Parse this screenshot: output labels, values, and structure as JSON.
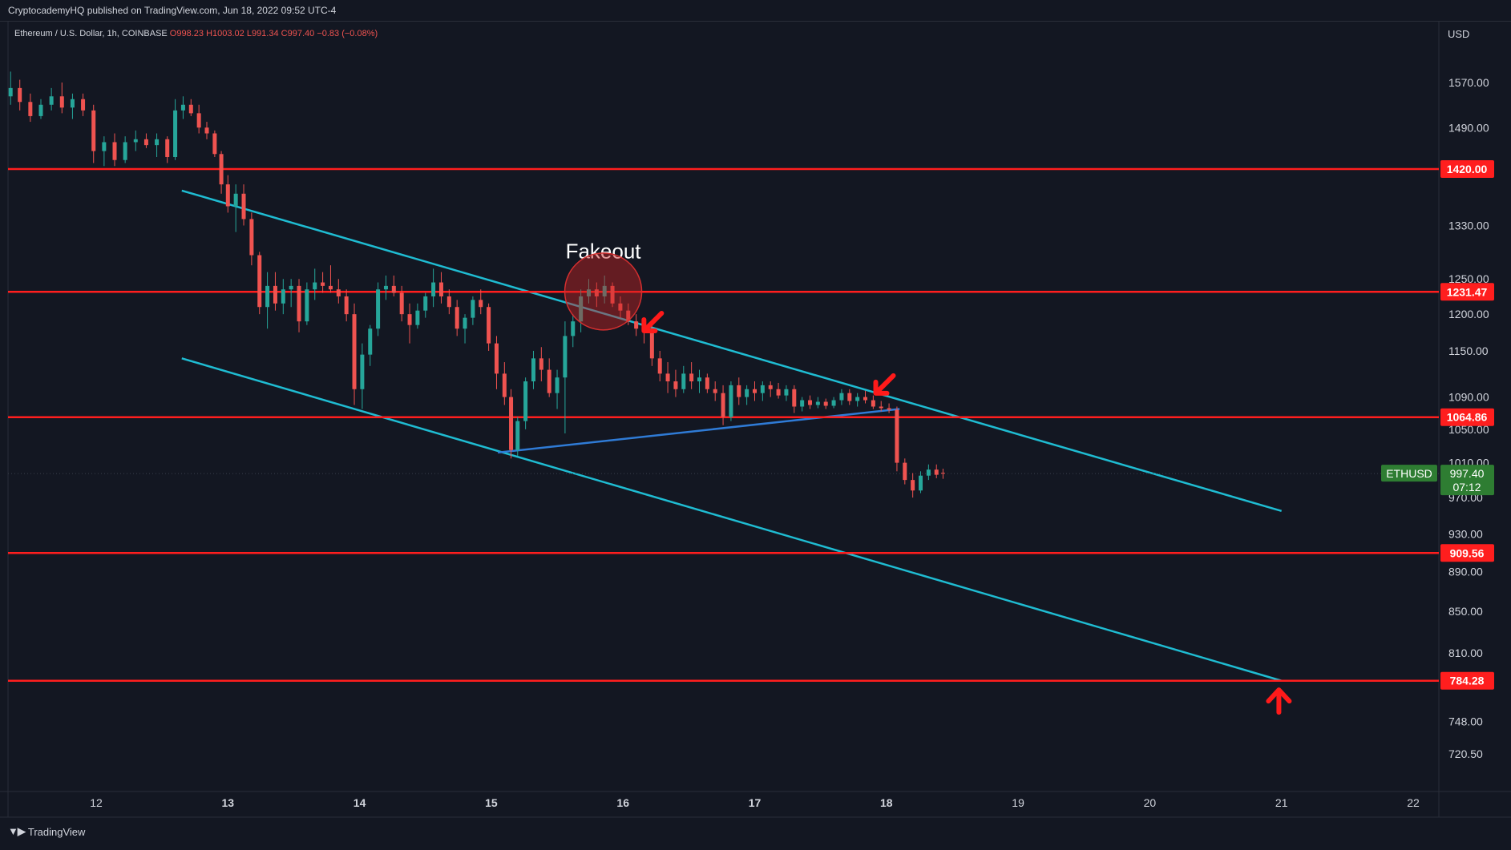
{
  "publisher_line": "CryptocademyHQ published on TradingView.com, Jun 18, 2022 09:52 UTC-4",
  "footer": {
    "brand": "TradingView"
  },
  "colors": {
    "background": "#131722",
    "up": "#26a69a",
    "down": "#ef5350",
    "level": "#ff1e1e",
    "channel": "#1fbcd2",
    "trendline": "#2f7bd6",
    "arrow": "#ff1a1a",
    "price_tag": "#2e7d32"
  },
  "chart_data": {
    "type": "candlestick",
    "symbol_header": {
      "name": "Ethereum / U.S. Dollar, 1h, COINBASE",
      "open": "O998.23",
      "high": "H1003.02",
      "low": "L991.34",
      "close": "C997.40",
      "change": "−0.83 (−0.08%)"
    },
    "currency": "USD",
    "y_axis": {
      "scale": "log",
      "range": [
        690,
        1650
      ],
      "ticks": [
        "1570.00",
        "1490.00",
        "1330.00",
        "1250.00",
        "1200.00",
        "1150.00",
        "1090.00",
        "1050.00",
        "1010.00",
        "970.00",
        "930.00",
        "890.00",
        "850.00",
        "810.00",
        "748.00",
        "720.50"
      ],
      "tick_values": [
        1570,
        1490,
        1330,
        1250,
        1200,
        1150,
        1090,
        1050,
        1010,
        970,
        930,
        890,
        850,
        810,
        748,
        720.5
      ]
    },
    "x_axis": {
      "labels": [
        "12",
        "13",
        "14",
        "15",
        "16",
        "17",
        "18",
        "19",
        "20",
        "21",
        "22"
      ],
      "label_days": [
        12,
        13,
        14,
        15,
        16,
        17,
        18,
        19,
        20,
        21,
        22
      ],
      "bold": [
        false,
        true,
        true,
        true,
        true,
        true,
        true,
        false,
        false,
        false,
        false
      ],
      "range_days": [
        11.34,
        22.25
      ]
    },
    "horizontal_levels": [
      {
        "value": 1420.0,
        "label": "1420.00"
      },
      {
        "value": 1231.47,
        "label": "1231.47"
      },
      {
        "value": 1064.86,
        "label": "1064.86"
      },
      {
        "value": 909.56,
        "label": "909.56"
      },
      {
        "value": 784.28,
        "label": "784.28"
      }
    ],
    "current_price": {
      "symbol": "ETHUSD",
      "price": "997.40",
      "countdown": "07:12",
      "value": 997.4
    },
    "channel_lines": [
      {
        "name": "upper",
        "x1": 12.65,
        "y1": 1385,
        "x2": 21.0,
        "y2": 955
      },
      {
        "name": "lower",
        "x1": 12.65,
        "y1": 1140,
        "x2": 21.0,
        "y2": 784.28
      }
    ],
    "trendline": {
      "x1": 15.05,
      "y1": 1022,
      "x2": 18.1,
      "y2": 1075
    },
    "annotations": [
      {
        "type": "text",
        "text": "Fakeout",
        "x": 15.85,
        "y": 1280
      },
      {
        "type": "circle",
        "x": 15.85,
        "y": 1232
      },
      {
        "type": "arrow",
        "direction": "down-left",
        "x": 16.22,
        "y": 1188
      },
      {
        "type": "arrow",
        "direction": "down-left",
        "x": 17.98,
        "y": 1105
      },
      {
        "type": "arrow",
        "direction": "up",
        "x": 20.98,
        "y": 766
      }
    ],
    "candles": [
      {
        "t": 11.35,
        "o": 1545,
        "h": 1590,
        "l": 1530,
        "c": 1560
      },
      {
        "t": 11.42,
        "o": 1560,
        "h": 1575,
        "l": 1520,
        "c": 1535
      },
      {
        "t": 11.5,
        "o": 1535,
        "h": 1550,
        "l": 1500,
        "c": 1510
      },
      {
        "t": 11.58,
        "o": 1510,
        "h": 1540,
        "l": 1505,
        "c": 1530
      },
      {
        "t": 11.66,
        "o": 1530,
        "h": 1560,
        "l": 1520,
        "c": 1545
      },
      {
        "t": 11.74,
        "o": 1545,
        "h": 1570,
        "l": 1515,
        "c": 1525
      },
      {
        "t": 11.82,
        "o": 1525,
        "h": 1550,
        "l": 1505,
        "c": 1540
      },
      {
        "t": 11.9,
        "o": 1540,
        "h": 1550,
        "l": 1510,
        "c": 1520
      },
      {
        "t": 11.98,
        "o": 1520,
        "h": 1530,
        "l": 1430,
        "c": 1450
      },
      {
        "t": 12.06,
        "o": 1450,
        "h": 1475,
        "l": 1425,
        "c": 1465
      },
      {
        "t": 12.14,
        "o": 1465,
        "h": 1480,
        "l": 1425,
        "c": 1435
      },
      {
        "t": 12.22,
        "o": 1435,
        "h": 1475,
        "l": 1430,
        "c": 1465
      },
      {
        "t": 12.3,
        "o": 1465,
        "h": 1485,
        "l": 1450,
        "c": 1470
      },
      {
        "t": 12.38,
        "o": 1470,
        "h": 1480,
        "l": 1455,
        "c": 1460
      },
      {
        "t": 12.46,
        "o": 1460,
        "h": 1480,
        "l": 1440,
        "c": 1470
      },
      {
        "t": 12.54,
        "o": 1470,
        "h": 1475,
        "l": 1430,
        "c": 1440
      },
      {
        "t": 12.6,
        "o": 1440,
        "h": 1540,
        "l": 1435,
        "c": 1520
      },
      {
        "t": 12.66,
        "o": 1520,
        "h": 1545,
        "l": 1505,
        "c": 1530
      },
      {
        "t": 12.72,
        "o": 1530,
        "h": 1540,
        "l": 1510,
        "c": 1515
      },
      {
        "t": 12.78,
        "o": 1515,
        "h": 1530,
        "l": 1480,
        "c": 1490
      },
      {
        "t": 12.84,
        "o": 1490,
        "h": 1500,
        "l": 1470,
        "c": 1480
      },
      {
        "t": 12.9,
        "o": 1480,
        "h": 1485,
        "l": 1440,
        "c": 1445
      },
      {
        "t": 12.95,
        "o": 1445,
        "h": 1450,
        "l": 1380,
        "c": 1395
      },
      {
        "t": 13.0,
        "o": 1395,
        "h": 1410,
        "l": 1350,
        "c": 1360
      },
      {
        "t": 13.06,
        "o": 1360,
        "h": 1395,
        "l": 1320,
        "c": 1380
      },
      {
        "t": 13.12,
        "o": 1380,
        "h": 1395,
        "l": 1330,
        "c": 1340
      },
      {
        "t": 13.18,
        "o": 1340,
        "h": 1350,
        "l": 1270,
        "c": 1285
      },
      {
        "t": 13.24,
        "o": 1285,
        "h": 1290,
        "l": 1200,
        "c": 1210
      },
      {
        "t": 13.3,
        "o": 1210,
        "h": 1260,
        "l": 1180,
        "c": 1240
      },
      {
        "t": 13.36,
        "o": 1240,
        "h": 1260,
        "l": 1205,
        "c": 1215
      },
      {
        "t": 13.42,
        "o": 1215,
        "h": 1250,
        "l": 1200,
        "c": 1235
      },
      {
        "t": 13.48,
        "o": 1235,
        "h": 1250,
        "l": 1210,
        "c": 1240
      },
      {
        "t": 13.54,
        "o": 1240,
        "h": 1250,
        "l": 1175,
        "c": 1190
      },
      {
        "t": 13.6,
        "o": 1190,
        "h": 1245,
        "l": 1185,
        "c": 1235
      },
      {
        "t": 13.66,
        "o": 1235,
        "h": 1265,
        "l": 1220,
        "c": 1245
      },
      {
        "t": 13.72,
        "o": 1245,
        "h": 1260,
        "l": 1230,
        "c": 1240
      },
      {
        "t": 13.78,
        "o": 1240,
        "h": 1270,
        "l": 1230,
        "c": 1235
      },
      {
        "t": 13.84,
        "o": 1235,
        "h": 1250,
        "l": 1215,
        "c": 1225
      },
      {
        "t": 13.9,
        "o": 1225,
        "h": 1235,
        "l": 1190,
        "c": 1200
      },
      {
        "t": 13.96,
        "o": 1200,
        "h": 1215,
        "l": 1080,
        "c": 1100
      },
      {
        "t": 14.02,
        "o": 1100,
        "h": 1160,
        "l": 1075,
        "c": 1145
      },
      {
        "t": 14.08,
        "o": 1145,
        "h": 1185,
        "l": 1130,
        "c": 1180
      },
      {
        "t": 14.14,
        "o": 1180,
        "h": 1245,
        "l": 1170,
        "c": 1235
      },
      {
        "t": 14.2,
        "o": 1235,
        "h": 1255,
        "l": 1220,
        "c": 1240
      },
      {
        "t": 14.26,
        "o": 1240,
        "h": 1255,
        "l": 1225,
        "c": 1230
      },
      {
        "t": 14.32,
        "o": 1230,
        "h": 1240,
        "l": 1190,
        "c": 1200
      },
      {
        "t": 14.38,
        "o": 1200,
        "h": 1215,
        "l": 1160,
        "c": 1185
      },
      {
        "t": 14.44,
        "o": 1185,
        "h": 1215,
        "l": 1180,
        "c": 1205
      },
      {
        "t": 14.5,
        "o": 1205,
        "h": 1230,
        "l": 1195,
        "c": 1225
      },
      {
        "t": 14.56,
        "o": 1225,
        "h": 1265,
        "l": 1210,
        "c": 1245
      },
      {
        "t": 14.62,
        "o": 1245,
        "h": 1260,
        "l": 1215,
        "c": 1225
      },
      {
        "t": 14.68,
        "o": 1225,
        "h": 1235,
        "l": 1200,
        "c": 1210
      },
      {
        "t": 14.74,
        "o": 1210,
        "h": 1220,
        "l": 1170,
        "c": 1180
      },
      {
        "t": 14.8,
        "o": 1180,
        "h": 1200,
        "l": 1160,
        "c": 1195
      },
      {
        "t": 14.86,
        "o": 1195,
        "h": 1225,
        "l": 1185,
        "c": 1220
      },
      {
        "t": 14.92,
        "o": 1220,
        "h": 1235,
        "l": 1200,
        "c": 1210
      },
      {
        "t": 14.98,
        "o": 1210,
        "h": 1215,
        "l": 1150,
        "c": 1160
      },
      {
        "t": 15.04,
        "o": 1160,
        "h": 1170,
        "l": 1100,
        "c": 1120
      },
      {
        "t": 15.1,
        "o": 1120,
        "h": 1135,
        "l": 1080,
        "c": 1090
      },
      {
        "t": 15.15,
        "o": 1090,
        "h": 1100,
        "l": 1015,
        "c": 1025
      },
      {
        "t": 15.2,
        "o": 1025,
        "h": 1065,
        "l": 1018,
        "c": 1060
      },
      {
        "t": 15.26,
        "o": 1060,
        "h": 1115,
        "l": 1050,
        "c": 1110
      },
      {
        "t": 15.32,
        "o": 1110,
        "h": 1150,
        "l": 1100,
        "c": 1140
      },
      {
        "t": 15.38,
        "o": 1140,
        "h": 1155,
        "l": 1110,
        "c": 1125
      },
      {
        "t": 15.44,
        "o": 1125,
        "h": 1140,
        "l": 1090,
        "c": 1095
      },
      {
        "t": 15.5,
        "o": 1095,
        "h": 1125,
        "l": 1075,
        "c": 1115
      },
      {
        "t": 15.56,
        "o": 1115,
        "h": 1190,
        "l": 1045,
        "c": 1170
      },
      {
        "t": 15.62,
        "o": 1170,
        "h": 1200,
        "l": 1155,
        "c": 1190
      },
      {
        "t": 15.68,
        "o": 1190,
        "h": 1235,
        "l": 1175,
        "c": 1225
      },
      {
        "t": 15.74,
        "o": 1225,
        "h": 1250,
        "l": 1215,
        "c": 1235
      },
      {
        "t": 15.8,
        "o": 1235,
        "h": 1245,
        "l": 1210,
        "c": 1225
      },
      {
        "t": 15.86,
        "o": 1225,
        "h": 1255,
        "l": 1215,
        "c": 1240
      },
      {
        "t": 15.92,
        "o": 1240,
        "h": 1245,
        "l": 1210,
        "c": 1215
      },
      {
        "t": 15.98,
        "o": 1215,
        "h": 1225,
        "l": 1195,
        "c": 1205
      },
      {
        "t": 16.04,
        "o": 1205,
        "h": 1215,
        "l": 1185,
        "c": 1190
      },
      {
        "t": 16.1,
        "o": 1190,
        "h": 1200,
        "l": 1170,
        "c": 1180
      },
      {
        "t": 16.16,
        "o": 1180,
        "h": 1190,
        "l": 1160,
        "c": 1175
      },
      {
        "t": 16.22,
        "o": 1175,
        "h": 1185,
        "l": 1130,
        "c": 1140
      },
      {
        "t": 16.28,
        "o": 1140,
        "h": 1150,
        "l": 1110,
        "c": 1120
      },
      {
        "t": 16.34,
        "o": 1120,
        "h": 1135,
        "l": 1095,
        "c": 1110
      },
      {
        "t": 16.4,
        "o": 1110,
        "h": 1125,
        "l": 1090,
        "c": 1100
      },
      {
        "t": 16.46,
        "o": 1100,
        "h": 1130,
        "l": 1095,
        "c": 1120
      },
      {
        "t": 16.52,
        "o": 1120,
        "h": 1135,
        "l": 1100,
        "c": 1110
      },
      {
        "t": 16.58,
        "o": 1110,
        "h": 1125,
        "l": 1095,
        "c": 1115
      },
      {
        "t": 16.64,
        "o": 1115,
        "h": 1120,
        "l": 1095,
        "c": 1100
      },
      {
        "t": 16.7,
        "o": 1100,
        "h": 1110,
        "l": 1085,
        "c": 1095
      },
      {
        "t": 16.76,
        "o": 1095,
        "h": 1105,
        "l": 1055,
        "c": 1065
      },
      {
        "t": 16.82,
        "o": 1065,
        "h": 1110,
        "l": 1060,
        "c": 1105
      },
      {
        "t": 16.88,
        "o": 1105,
        "h": 1115,
        "l": 1080,
        "c": 1090
      },
      {
        "t": 16.94,
        "o": 1090,
        "h": 1105,
        "l": 1080,
        "c": 1100
      },
      {
        "t": 17.0,
        "o": 1100,
        "h": 1110,
        "l": 1085,
        "c": 1095
      },
      {
        "t": 17.06,
        "o": 1095,
        "h": 1110,
        "l": 1085,
        "c": 1105
      },
      {
        "t": 17.12,
        "o": 1105,
        "h": 1110,
        "l": 1090,
        "c": 1100
      },
      {
        "t": 17.18,
        "o": 1100,
        "h": 1108,
        "l": 1088,
        "c": 1092
      },
      {
        "t": 17.24,
        "o": 1092,
        "h": 1105,
        "l": 1085,
        "c": 1100
      },
      {
        "t": 17.3,
        "o": 1100,
        "h": 1105,
        "l": 1070,
        "c": 1078
      },
      {
        "t": 17.36,
        "o": 1078,
        "h": 1090,
        "l": 1072,
        "c": 1086
      },
      {
        "t": 17.42,
        "o": 1086,
        "h": 1092,
        "l": 1075,
        "c": 1080
      },
      {
        "t": 17.48,
        "o": 1080,
        "h": 1090,
        "l": 1076,
        "c": 1084
      },
      {
        "t": 17.54,
        "o": 1084,
        "h": 1088,
        "l": 1075,
        "c": 1079
      },
      {
        "t": 17.6,
        "o": 1079,
        "h": 1090,
        "l": 1076,
        "c": 1086
      },
      {
        "t": 17.66,
        "o": 1086,
        "h": 1100,
        "l": 1080,
        "c": 1095
      },
      {
        "t": 17.72,
        "o": 1095,
        "h": 1100,
        "l": 1080,
        "c": 1085
      },
      {
        "t": 17.78,
        "o": 1085,
        "h": 1095,
        "l": 1078,
        "c": 1090
      },
      {
        "t": 17.84,
        "o": 1090,
        "h": 1098,
        "l": 1082,
        "c": 1086
      },
      {
        "t": 17.9,
        "o": 1086,
        "h": 1092,
        "l": 1075,
        "c": 1078
      },
      {
        "t": 17.96,
        "o": 1078,
        "h": 1085,
        "l": 1072,
        "c": 1076
      },
      {
        "t": 18.02,
        "o": 1076,
        "h": 1082,
        "l": 1070,
        "c": 1074
      },
      {
        "t": 18.08,
        "o": 1074,
        "h": 1078,
        "l": 1000,
        "c": 1010
      },
      {
        "t": 18.14,
        "o": 1010,
        "h": 1015,
        "l": 985,
        "c": 990
      },
      {
        "t": 18.2,
        "o": 990,
        "h": 998,
        "l": 970,
        "c": 978
      },
      {
        "t": 18.26,
        "o": 978,
        "h": 1000,
        "l": 975,
        "c": 995
      },
      {
        "t": 18.32,
        "o": 995,
        "h": 1008,
        "l": 990,
        "c": 1002
      },
      {
        "t": 18.38,
        "o": 1002,
        "h": 1008,
        "l": 992,
        "c": 996
      },
      {
        "t": 18.43,
        "o": 998.23,
        "h": 1003.02,
        "l": 991.34,
        "c": 997.4
      }
    ]
  }
}
